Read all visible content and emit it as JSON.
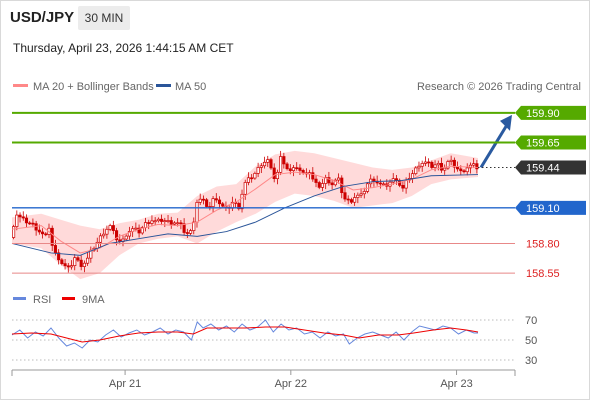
{
  "header": {
    "symbol": "USD/JPY",
    "timeframe": "30 MIN",
    "datetime": "Thursday, April 23, 2026 1:44:15 AM CET",
    "legend_ma20": "MA 20 + Bollinger Bands",
    "legend_ma50": "MA 50",
    "credit": "Research © 2026 Trading Central"
  },
  "colors": {
    "candle": "#cc0000",
    "ma20": "#ff8888",
    "ma50": "#2a5599",
    "bollinger_fill": "#ffd4d4",
    "resistance": "#55aa00",
    "support_blue": "#2266cc",
    "support_red": "#e88888",
    "current": "#333333",
    "arrow": "#2a5aa0",
    "rsi": "#6688dd",
    "rsi_ma": "#ee0000"
  },
  "chart_data": [
    {
      "type": "candlestick",
      "title": "USD/JPY 30 MIN",
      "x_ticks": [
        "Apr 21",
        "Apr 22",
        "Apr 23"
      ],
      "ylim": [
        158.45,
        160.05
      ],
      "levels": [
        {
          "label": "159.90",
          "value": 159.9,
          "kind": "resistance"
        },
        {
          "label": "159.65",
          "value": 159.65,
          "kind": "resistance"
        },
        {
          "label": "159.44",
          "value": 159.44,
          "kind": "current"
        },
        {
          "label": "159.10",
          "value": 159.1,
          "kind": "support"
        },
        {
          "label": "158.80",
          "value": 158.8,
          "kind": "support"
        },
        {
          "label": "158.55",
          "value": 158.55,
          "kind": "support"
        }
      ],
      "forecast": {
        "from": 159.44,
        "to": 159.9
      },
      "price_path": [
        [
          0,
          158.85
        ],
        [
          6,
          159.05
        ],
        [
          12,
          159.0
        ],
        [
          18,
          158.98
        ],
        [
          24,
          158.95
        ],
        [
          30,
          158.9
        ],
        [
          36,
          158.85
        ],
        [
          40,
          158.95
        ],
        [
          44,
          158.72
        ],
        [
          48,
          158.7
        ],
        [
          54,
          158.62
        ],
        [
          60,
          158.58
        ],
        [
          66,
          158.68
        ],
        [
          72,
          158.62
        ],
        [
          78,
          158.65
        ],
        [
          84,
          158.75
        ],
        [
          90,
          158.82
        ],
        [
          96,
          158.9
        ],
        [
          102,
          158.95
        ],
        [
          108,
          158.85
        ],
        [
          114,
          158.8
        ],
        [
          120,
          158.9
        ],
        [
          126,
          158.92
        ],
        [
          132,
          158.9
        ],
        [
          138,
          158.96
        ],
        [
          144,
          159.0
        ],
        [
          150,
          158.98
        ],
        [
          156,
          159.0
        ],
        [
          162,
          158.98
        ],
        [
          168,
          158.98
        ],
        [
          174,
          158.96
        ],
        [
          180,
          158.88
        ],
        [
          186,
          158.9
        ],
        [
          192,
          159.18
        ],
        [
          198,
          159.15
        ],
        [
          204,
          159.1
        ],
        [
          210,
          159.2
        ],
        [
          216,
          159.12
        ],
        [
          222,
          159.08
        ],
        [
          228,
          159.15
        ],
        [
          234,
          159.1
        ],
        [
          240,
          159.3
        ],
        [
          246,
          159.35
        ],
        [
          252,
          159.4
        ],
        [
          258,
          159.48
        ],
        [
          264,
          159.5
        ],
        [
          270,
          159.35
        ],
        [
          274,
          159.4
        ],
        [
          278,
          159.55
        ],
        [
          282,
          159.45
        ],
        [
          288,
          159.4
        ],
        [
          294,
          159.45
        ],
        [
          300,
          159.38
        ],
        [
          306,
          159.42
        ],
        [
          312,
          159.3
        ],
        [
          318,
          159.28
        ],
        [
          324,
          159.35
        ],
        [
          330,
          159.3
        ],
        [
          336,
          159.35
        ],
        [
          342,
          159.18
        ],
        [
          348,
          159.15
        ],
        [
          354,
          159.2
        ],
        [
          360,
          159.2
        ],
        [
          366,
          159.3
        ],
        [
          372,
          159.35
        ],
        [
          378,
          159.3
        ],
        [
          384,
          159.28
        ],
        [
          390,
          159.32
        ],
        [
          396,
          159.35
        ],
        [
          402,
          159.25
        ],
        [
          408,
          159.35
        ],
        [
          414,
          159.4
        ],
        [
          420,
          159.48
        ],
        [
          426,
          159.48
        ],
        [
          432,
          159.45
        ],
        [
          438,
          159.47
        ],
        [
          444,
          159.42
        ],
        [
          450,
          159.5
        ],
        [
          456,
          159.45
        ],
        [
          462,
          159.4
        ],
        [
          468,
          159.44
        ],
        [
          474,
          159.46
        ],
        [
          478,
          159.44
        ]
      ],
      "ma20_path": [
        [
          0,
          158.92
        ],
        [
          30,
          158.95
        ],
        [
          50,
          158.82
        ],
        [
          70,
          158.72
        ],
        [
          90,
          158.76
        ],
        [
          110,
          158.86
        ],
        [
          130,
          158.92
        ],
        [
          150,
          158.96
        ],
        [
          170,
          158.95
        ],
        [
          190,
          158.98
        ],
        [
          210,
          159.08
        ],
        [
          230,
          159.15
        ],
        [
          250,
          159.26
        ],
        [
          270,
          159.38
        ],
        [
          290,
          159.4
        ],
        [
          310,
          159.38
        ],
        [
          330,
          159.33
        ],
        [
          350,
          159.25
        ],
        [
          370,
          159.27
        ],
        [
          390,
          159.3
        ],
        [
          410,
          159.34
        ],
        [
          430,
          159.42
        ],
        [
          450,
          159.45
        ],
        [
          478,
          159.44
        ]
      ],
      "ma50_path": [
        [
          0,
          158.8
        ],
        [
          40,
          158.72
        ],
        [
          70,
          158.7
        ],
        [
          100,
          158.8
        ],
        [
          130,
          158.84
        ],
        [
          160,
          158.88
        ],
        [
          190,
          158.86
        ],
        [
          220,
          158.9
        ],
        [
          250,
          158.98
        ],
        [
          280,
          159.1
        ],
        [
          310,
          159.2
        ],
        [
          340,
          159.28
        ],
        [
          370,
          159.32
        ],
        [
          400,
          159.33
        ],
        [
          430,
          159.37
        ],
        [
          478,
          159.38
        ]
      ],
      "bb_upper_path": [
        [
          0,
          159.02
        ],
        [
          30,
          159.05
        ],
        [
          50,
          159.0
        ],
        [
          70,
          158.95
        ],
        [
          90,
          158.92
        ],
        [
          110,
          158.97
        ],
        [
          130,
          159.0
        ],
        [
          150,
          159.05
        ],
        [
          170,
          159.06
        ],
        [
          190,
          159.2
        ],
        [
          210,
          159.28
        ],
        [
          230,
          159.3
        ],
        [
          250,
          159.45
        ],
        [
          270,
          159.55
        ],
        [
          290,
          159.58
        ],
        [
          310,
          159.56
        ],
        [
          330,
          159.52
        ],
        [
          350,
          159.48
        ],
        [
          370,
          159.44
        ],
        [
          390,
          159.42
        ],
        [
          410,
          159.44
        ],
        [
          430,
          159.5
        ],
        [
          450,
          159.56
        ],
        [
          478,
          159.52
        ]
      ],
      "bb_lower_path": [
        [
          0,
          158.8
        ],
        [
          30,
          158.76
        ],
        [
          50,
          158.62
        ],
        [
          70,
          158.5
        ],
        [
          90,
          158.55
        ],
        [
          110,
          158.7
        ],
        [
          130,
          158.8
        ],
        [
          150,
          158.84
        ],
        [
          170,
          158.86
        ],
        [
          190,
          158.8
        ],
        [
          210,
          158.9
        ],
        [
          230,
          158.98
        ],
        [
          250,
          159.05
        ],
        [
          270,
          159.15
        ],
        [
          290,
          159.22
        ],
        [
          310,
          159.2
        ],
        [
          330,
          159.16
        ],
        [
          350,
          159.1
        ],
        [
          370,
          159.12
        ],
        [
          390,
          159.14
        ],
        [
          410,
          159.2
        ],
        [
          430,
          159.3
        ],
        [
          450,
          159.34
        ],
        [
          478,
          159.36
        ]
      ],
      "legend": [
        "MA 20 + Bollinger Bands",
        "MA 50"
      ]
    },
    {
      "type": "line",
      "title": "RSI",
      "series": [
        {
          "name": "RSI",
          "values": [
            [
              0,
              55
            ],
            [
              8,
              60
            ],
            [
              16,
              52
            ],
            [
              24,
              58
            ],
            [
              32,
              54
            ],
            [
              40,
              62
            ],
            [
              48,
              52
            ],
            [
              56,
              44
            ],
            [
              64,
              47
            ],
            [
              72,
              42
            ],
            [
              80,
              50
            ],
            [
              88,
              48
            ],
            [
              96,
              55
            ],
            [
              104,
              60
            ],
            [
              112,
              53
            ],
            [
              120,
              57
            ],
            [
              128,
              60
            ],
            [
              136,
              55
            ],
            [
              144,
              58
            ],
            [
              152,
              62
            ],
            [
              160,
              56
            ],
            [
              168,
              60
            ],
            [
              176,
              58
            ],
            [
              184,
              50
            ],
            [
              190,
              68
            ],
            [
              196,
              62
            ],
            [
              204,
              66
            ],
            [
              212,
              60
            ],
            [
              220,
              64
            ],
            [
              228,
              58
            ],
            [
              236,
              66
            ],
            [
              244,
              60
            ],
            [
              252,
              63
            ],
            [
              260,
              70
            ],
            [
              268,
              58
            ],
            [
              276,
              66
            ],
            [
              284,
              60
            ],
            [
              292,
              62
            ],
            [
              300,
              56
            ],
            [
              308,
              58
            ],
            [
              316,
              52
            ],
            [
              324,
              58
            ],
            [
              332,
              54
            ],
            [
              340,
              56
            ],
            [
              346,
              46
            ],
            [
              354,
              52
            ],
            [
              362,
              56
            ],
            [
              370,
              58
            ],
            [
              378,
              55
            ],
            [
              386,
              52
            ],
            [
              394,
              58
            ],
            [
              402,
              50
            ],
            [
              410,
              58
            ],
            [
              418,
              64
            ],
            [
              426,
              62
            ],
            [
              434,
              60
            ],
            [
              442,
              64
            ],
            [
              450,
              62
            ],
            [
              458,
              56
            ],
            [
              466,
              60
            ],
            [
              474,
              57
            ],
            [
              478,
              57
            ]
          ]
        },
        {
          "name": "9MA",
          "values": [
            [
              0,
              56
            ],
            [
              20,
              57
            ],
            [
              40,
              56
            ],
            [
              56,
              52
            ],
            [
              72,
              48
            ],
            [
              90,
              50
            ],
            [
              110,
              54
            ],
            [
              130,
              57
            ],
            [
              150,
              58
            ],
            [
              170,
              58
            ],
            [
              186,
              56
            ],
            [
              200,
              62
            ],
            [
              220,
              62
            ],
            [
              240,
              62
            ],
            [
              260,
              63
            ],
            [
              280,
              63
            ],
            [
              300,
              60
            ],
            [
              320,
              57
            ],
            [
              340,
              55
            ],
            [
              356,
              52
            ],
            [
              376,
              55
            ],
            [
              396,
              55
            ],
            [
              412,
              57
            ],
            [
              432,
              60
            ],
            [
              450,
              62
            ],
            [
              466,
              60
            ],
            [
              478,
              58
            ]
          ]
        }
      ],
      "y_ticks": [
        70,
        50,
        30
      ],
      "ylim": [
        22,
        78
      ]
    }
  ]
}
